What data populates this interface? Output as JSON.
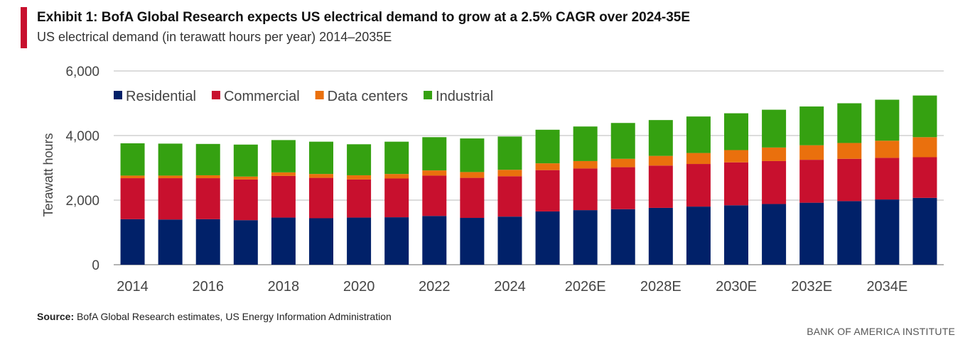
{
  "header": {
    "title": "Exhibit 1: BofA Global Research expects US electrical demand to grow at a 2.5% CAGR over 2024-35E",
    "subtitle": "US electrical demand (in terawatt hours per year) 2014–2035E"
  },
  "footer": {
    "source_label": "Source:",
    "source_text": " BofA Global Research estimates, US Energy Information Administration",
    "brand": "BANK OF AMERICA INSTITUTE"
  },
  "chart_data": {
    "type": "bar",
    "stacked": true,
    "title": "US electrical demand (in terawatt hours per year) 2014–2035E",
    "xlabel": "",
    "ylabel": "Terawatt hours",
    "ylim": [
      0,
      6000
    ],
    "yticks": [
      0,
      2000,
      4000,
      6000
    ],
    "ytick_labels": [
      "0",
      "2,000",
      "4,000",
      "6,000"
    ],
    "grid": true,
    "legend_position": "top-left",
    "categories": [
      "2014",
      "2015",
      "2016",
      "2017",
      "2018",
      "2019",
      "2020",
      "2021",
      "2022",
      "2023",
      "2024",
      "2025E",
      "2026E",
      "2027E",
      "2028E",
      "2029E",
      "2030E",
      "2031E",
      "2032E",
      "2033E",
      "2034E",
      "2035E"
    ],
    "xtick_labels": [
      "2014",
      "",
      "2016",
      "",
      "2018",
      "",
      "2020",
      "",
      "2022",
      "",
      "2024",
      "",
      "2026E",
      "",
      "2028E",
      "",
      "2030E",
      "",
      "2032E",
      "",
      "2034E",
      ""
    ],
    "series": [
      {
        "name": "Residential",
        "color": "#012169",
        "values": [
          1410,
          1400,
          1410,
          1380,
          1460,
          1440,
          1460,
          1470,
          1510,
          1450,
          1490,
          1650,
          1690,
          1720,
          1760,
          1800,
          1840,
          1880,
          1920,
          1970,
          2020,
          2070
        ]
      },
      {
        "name": "Commercial",
        "color": "#c8102e",
        "values": [
          1270,
          1280,
          1270,
          1260,
          1290,
          1250,
          1180,
          1200,
          1250,
          1240,
          1250,
          1280,
          1290,
          1300,
          1310,
          1320,
          1330,
          1330,
          1330,
          1310,
          1290,
          1260
        ]
      },
      {
        "name": "Data centers",
        "color": "#ea700d",
        "values": [
          80,
          80,
          90,
          90,
          110,
          120,
          130,
          140,
          160,
          180,
          200,
          210,
          230,
          260,
          300,
          340,
          380,
          420,
          450,
          490,
          530,
          620
        ]
      },
      {
        "name": "Industrial",
        "color": "#35a111",
        "values": [
          1000,
          990,
          970,
          990,
          1000,
          1000,
          960,
          1000,
          1030,
          1040,
          1030,
          1040,
          1070,
          1110,
          1110,
          1130,
          1140,
          1170,
          1200,
          1230,
          1270,
          1290
        ]
      }
    ]
  }
}
